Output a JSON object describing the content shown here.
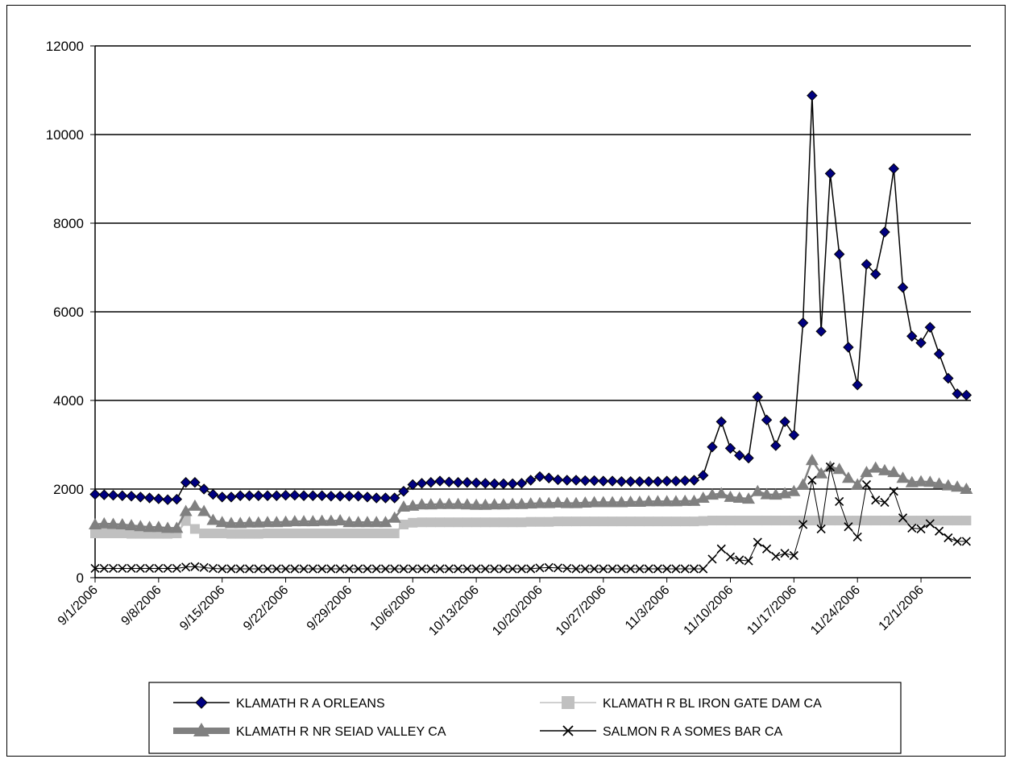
{
  "chart_data": {
    "type": "line",
    "title": "",
    "xlabel": "",
    "ylabel": "",
    "ylim": [
      0,
      12000
    ],
    "yticks": [
      0,
      2000,
      4000,
      6000,
      8000,
      10000,
      12000
    ],
    "x_start": "9/1/2006",
    "x_tick_labels": [
      "9/1/2006",
      "9/8/2006",
      "9/15/2006",
      "9/22/2006",
      "9/29/2006",
      "10/6/2006",
      "10/13/2006",
      "10/20/2006",
      "10/27/2006",
      "11/3/2006",
      "11/10/2006",
      "11/17/2006",
      "11/24/2006",
      "12/1/2006"
    ],
    "grid": "horizontal",
    "legend_position": "bottom",
    "series": [
      {
        "name": "KLAMATH R A ORLEANS",
        "color": "#000080",
        "values": [
          1880,
          1870,
          1860,
          1850,
          1840,
          1820,
          1800,
          1780,
          1760,
          1770,
          2150,
          2150,
          2000,
          1880,
          1820,
          1820,
          1850,
          1850,
          1850,
          1850,
          1850,
          1860,
          1860,
          1850,
          1850,
          1850,
          1840,
          1840,
          1840,
          1840,
          1820,
          1800,
          1800,
          1800,
          1950,
          2100,
          2130,
          2150,
          2180,
          2160,
          2150,
          2150,
          2140,
          2130,
          2120,
          2120,
          2120,
          2130,
          2200,
          2280,
          2250,
          2210,
          2200,
          2200,
          2190,
          2190,
          2180,
          2180,
          2170,
          2170,
          2170,
          2170,
          2170,
          2180,
          2180,
          2190,
          2200,
          2310,
          2950,
          3520,
          2920,
          2760,
          2700,
          4080,
          3560,
          2980,
          3520,
          3220,
          5750,
          10880,
          5560,
          9120,
          7300,
          5200,
          4350,
          7070,
          6850,
          7800,
          9230,
          6550,
          5450,
          5300,
          5650,
          5050,
          4500,
          4150,
          4120
        ]
      },
      {
        "name": "KLAMATH R BL IRON GATE DAM CA",
        "color": "#c0c0c0",
        "values": [
          1000,
          1000,
          1000,
          1000,
          990,
          990,
          990,
          990,
          990,
          1000,
          1280,
          1100,
          1000,
          1000,
          1000,
          990,
          990,
          990,
          990,
          1000,
          1000,
          1000,
          1000,
          1000,
          1000,
          1000,
          1000,
          1000,
          1000,
          1000,
          1000,
          1000,
          1000,
          1000,
          1200,
          1240,
          1250,
          1250,
          1250,
          1250,
          1250,
          1250,
          1250,
          1250,
          1250,
          1250,
          1250,
          1250,
          1260,
          1260,
          1260,
          1270,
          1270,
          1270,
          1270,
          1270,
          1270,
          1270,
          1270,
          1270,
          1270,
          1270,
          1270,
          1270,
          1270,
          1270,
          1270,
          1280,
          1290,
          1290,
          1290,
          1290,
          1290,
          1290,
          1290,
          1290,
          1290,
          1290,
          1290,
          1290,
          1290,
          1290,
          1290,
          1290,
          1290,
          1290,
          1290,
          1290,
          1290,
          1290,
          1290,
          1290,
          1290,
          1290,
          1290,
          1290,
          1290
        ]
      },
      {
        "name": "KLAMATH R NR SEIAD VALLEY CA",
        "color": "#808080",
        "values": [
          1200,
          1220,
          1210,
          1200,
          1180,
          1160,
          1140,
          1140,
          1120,
          1120,
          1500,
          1620,
          1500,
          1300,
          1250,
          1230,
          1230,
          1240,
          1240,
          1250,
          1250,
          1260,
          1270,
          1270,
          1270,
          1280,
          1280,
          1290,
          1250,
          1250,
          1250,
          1250,
          1250,
          1350,
          1600,
          1620,
          1650,
          1650,
          1660,
          1660,
          1660,
          1650,
          1640,
          1640,
          1650,
          1650,
          1660,
          1660,
          1670,
          1680,
          1680,
          1690,
          1680,
          1680,
          1690,
          1700,
          1700,
          1700,
          1700,
          1710,
          1710,
          1720,
          1720,
          1720,
          1720,
          1730,
          1730,
          1800,
          1870,
          1900,
          1820,
          1800,
          1780,
          1950,
          1880,
          1870,
          1900,
          1950,
          2100,
          2650,
          2350,
          2500,
          2450,
          2250,
          2100,
          2380,
          2480,
          2420,
          2380,
          2250,
          2150,
          2170,
          2160,
          2120,
          2080,
          2050,
          2000
        ]
      },
      {
        "name": "SALMON R A SOMES BAR CA",
        "color": "#000000",
        "values": [
          210,
          210,
          210,
          210,
          210,
          210,
          210,
          210,
          210,
          210,
          240,
          250,
          230,
          210,
          200,
          200,
          200,
          200,
          200,
          200,
          200,
          200,
          200,
          200,
          200,
          200,
          200,
          200,
          200,
          200,
          200,
          200,
          200,
          200,
          200,
          200,
          200,
          200,
          200,
          200,
          200,
          200,
          200,
          200,
          200,
          200,
          200,
          200,
          200,
          220,
          230,
          220,
          210,
          200,
          200,
          200,
          200,
          200,
          200,
          200,
          200,
          200,
          200,
          200,
          200,
          200,
          200,
          200,
          420,
          650,
          470,
          400,
          380,
          800,
          650,
          480,
          550,
          500,
          1200,
          2200,
          1100,
          2500,
          1720,
          1150,
          920,
          2100,
          1750,
          1700,
          1950,
          1350,
          1120,
          1100,
          1220,
          1050,
          900,
          820,
          820
        ]
      }
    ]
  }
}
